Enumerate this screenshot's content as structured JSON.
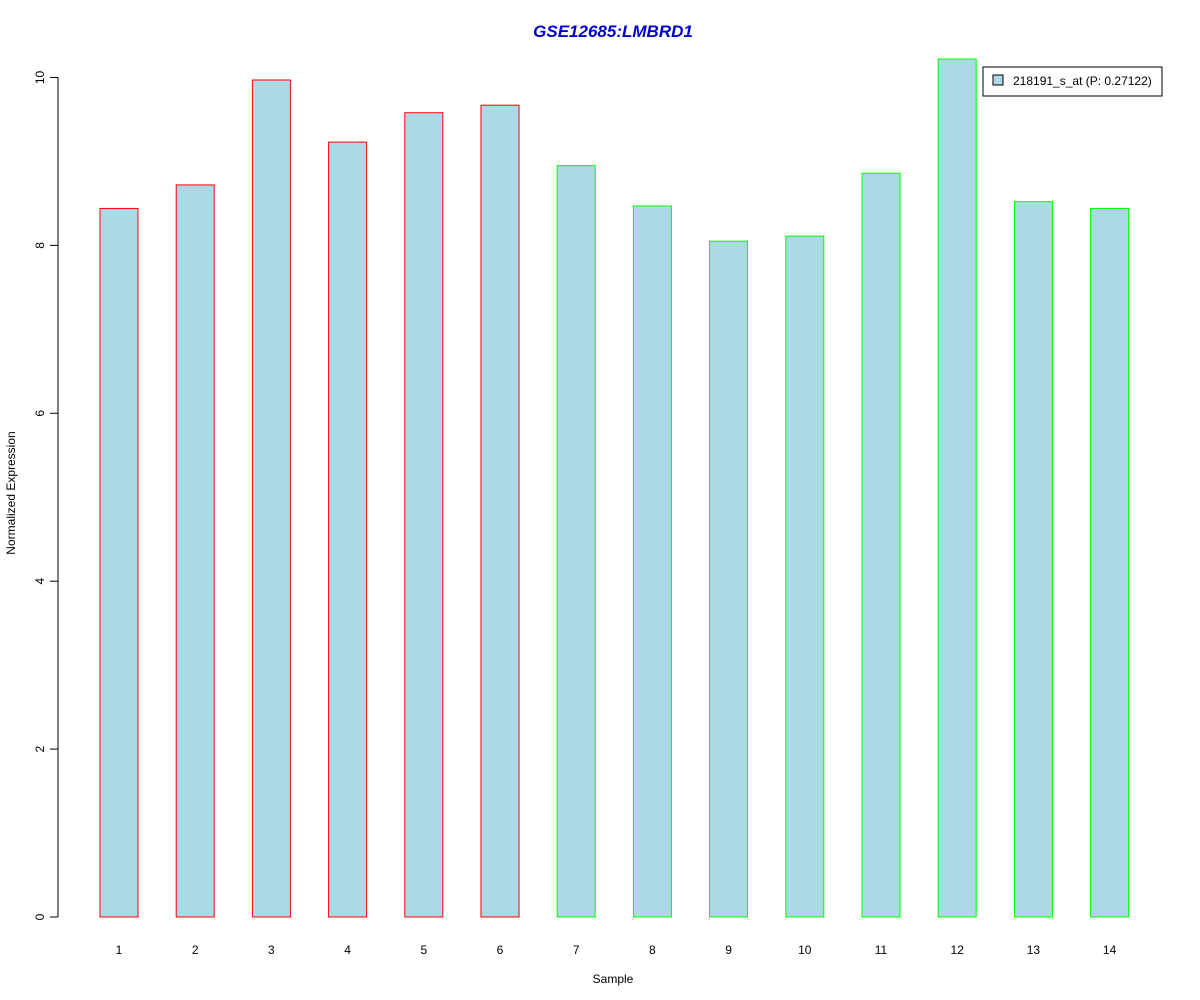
{
  "chart_data": {
    "type": "bar",
    "title": "GSE12685:LMBRD1",
    "xlabel": "Sample",
    "ylabel": "Normalized Expression",
    "categories": [
      "1",
      "2",
      "3",
      "4",
      "5",
      "6",
      "7",
      "8",
      "9",
      "10",
      "11",
      "12",
      "13",
      "14"
    ],
    "series": [
      {
        "name": "218191_s_at (P: 0.27122)",
        "values": [
          8.44,
          8.72,
          9.97,
          9.23,
          9.58,
          9.67,
          8.95,
          8.47,
          8.05,
          8.11,
          8.86,
          10.22,
          8.52,
          8.44
        ]
      }
    ],
    "bar_border_colors": [
      "#ff0000",
      "#ff0000",
      "#ff0000",
      "#ff0000",
      "#ff0000",
      "#ff0000",
      "#00ff00",
      "#00ff00",
      "#00ff00",
      "#00ff00",
      "#00ff00",
      "#00ff00",
      "#00ff00",
      "#00ff00"
    ],
    "bar_fill_color": "#add8e6",
    "title_color": "#0000cc",
    "ylim": [
      0,
      10.22
    ],
    "yticks": [
      0,
      2,
      4,
      6,
      8,
      10
    ],
    "grid": false,
    "legend_position": "top-right"
  }
}
